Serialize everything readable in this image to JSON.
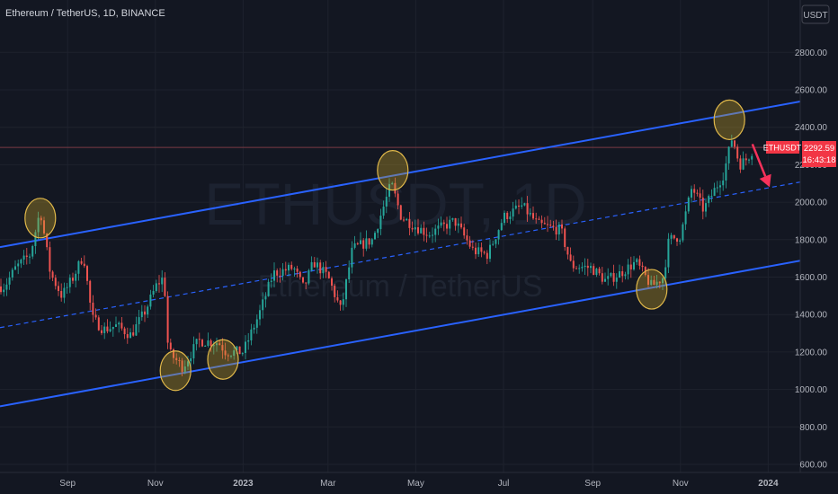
{
  "header": {
    "title": "Ethereum / TetherUS, 1D, BINANCE"
  },
  "watermark": {
    "symbol": "ETHUSDT, 1D",
    "name": "Ethereum / TetherUS"
  },
  "price_axis": {
    "currency_button": "USDT"
  },
  "price_badge": {
    "symbol": "ETHUSDT",
    "price": "2292.59",
    "countdown": "16:43:18",
    "color": "#f23645"
  },
  "colors": {
    "background": "#131722",
    "channel": "#2962ff",
    "candle_up": "#26a69a",
    "candle_down": "#ef5350",
    "circle_fill": "#c9a227",
    "arrow": "#f7325b"
  },
  "chart_data": {
    "type": "candlestick",
    "y_ticks": [
      "600.00",
      "800.00",
      "1000.00",
      "1200.00",
      "1400.00",
      "1600.00",
      "1800.00",
      "2000.00",
      "2200.00",
      "2400.00",
      "2600.00",
      "2800.00"
    ],
    "ylim": [
      560,
      2900
    ],
    "x_ticks": [
      "Sep",
      "Nov",
      "2023",
      "Mar",
      "May",
      "Jul",
      "Sep",
      "Nov",
      "2024"
    ],
    "price_path": [
      [
        "2022-07-19",
        1550
      ],
      [
        "2022-07-27",
        1650
      ],
      [
        "2022-08-06",
        1720
      ],
      [
        "2022-08-13",
        1960
      ],
      [
        "2022-08-20",
        1620
      ],
      [
        "2022-08-28",
        1500
      ],
      [
        "2022-09-05",
        1600
      ],
      [
        "2022-09-12",
        1720
      ],
      [
        "2022-09-18",
        1380
      ],
      [
        "2022-09-26",
        1320
      ],
      [
        "2022-10-05",
        1340
      ],
      [
        "2022-10-15",
        1290
      ],
      [
        "2022-10-25",
        1420
      ],
      [
        "2022-11-02",
        1560
      ],
      [
        "2022-11-07",
        1600
      ],
      [
        "2022-11-10",
        1200
      ],
      [
        "2022-11-20",
        1120
      ],
      [
        "2022-12-01",
        1260
      ],
      [
        "2022-12-15",
        1250
      ],
      [
        "2022-12-20",
        1200
      ],
      [
        "2023-01-01",
        1200
      ],
      [
        "2023-01-12",
        1400
      ],
      [
        "2023-01-22",
        1620
      ],
      [
        "2023-02-05",
        1650
      ],
      [
        "2023-02-12",
        1540
      ],
      [
        "2023-02-19",
        1680
      ],
      [
        "2023-03-01",
        1600
      ],
      [
        "2023-03-10",
        1420
      ],
      [
        "2023-03-18",
        1750
      ],
      [
        "2023-04-01",
        1800
      ],
      [
        "2023-04-14",
        2100
      ],
      [
        "2023-04-21",
        1920
      ],
      [
        "2023-05-01",
        1870
      ],
      [
        "2023-05-10",
        1830
      ],
      [
        "2023-05-28",
        1900
      ],
      [
        "2023-06-10",
        1740
      ],
      [
        "2023-06-20",
        1720
      ],
      [
        "2023-07-01",
        1920
      ],
      [
        "2023-07-14",
        1980
      ],
      [
        "2023-07-25",
        1880
      ],
      [
        "2023-08-10",
        1850
      ],
      [
        "2023-08-17",
        1660
      ],
      [
        "2023-08-31",
        1650
      ],
      [
        "2023-09-10",
        1580
      ],
      [
        "2023-09-20",
        1620
      ],
      [
        "2023-10-01",
        1680
      ],
      [
        "2023-10-12",
        1550
      ],
      [
        "2023-10-20",
        1600
      ],
      [
        "2023-10-24",
        1800
      ],
      [
        "2023-11-01",
        1820
      ],
      [
        "2023-11-09",
        2080
      ],
      [
        "2023-11-17",
        1960
      ],
      [
        "2023-11-25",
        2070
      ],
      [
        "2023-12-01",
        2150
      ],
      [
        "2023-12-07",
        2350
      ],
      [
        "2023-12-12",
        2200
      ],
      [
        "2023-12-17",
        2230
      ],
      [
        "2023-12-22",
        2290
      ]
    ],
    "channel": {
      "upper": [
        [
          "2022-07-16",
          1760
        ],
        [
          "2024-01-25",
          2540
        ]
      ],
      "mid": [
        [
          "2022-07-16",
          1330
        ],
        [
          "2024-01-25",
          2110
        ]
      ],
      "lower": [
        [
          "2022-07-16",
          910
        ],
        [
          "2024-01-25",
          1690
        ]
      ]
    },
    "current_price_line": 2292.59,
    "circles": [
      [
        "2022-08-13",
        1915
      ],
      [
        "2022-11-15",
        1100
      ],
      [
        "2022-12-18",
        1160
      ],
      [
        "2023-04-15",
        2170
      ],
      [
        "2023-10-12",
        1535
      ],
      [
        "2023-12-05",
        2440
      ]
    ],
    "arrow": {
      "from": [
        "2023-12-21",
        2310
      ],
      "to": [
        "2024-01-02",
        2080
      ]
    }
  }
}
